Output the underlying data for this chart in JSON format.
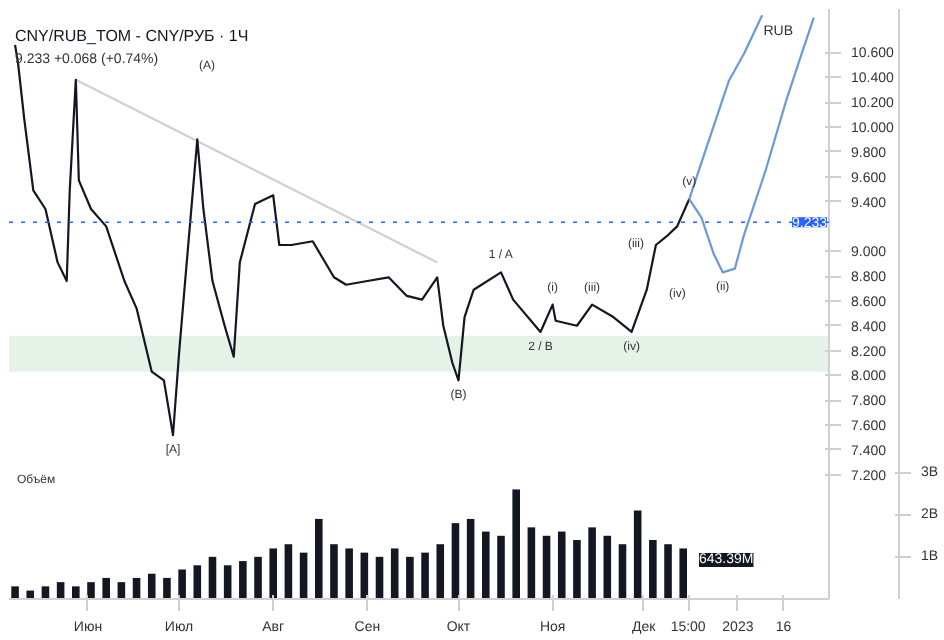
{
  "chart_data": {
    "type": "line",
    "title": "CNY/RUB_TOM - CNY/РУБ · 1Ч",
    "subtitle": "9.233 +0.068 (+0.74%)",
    "ylabel": "RUB",
    "grid": false,
    "marker": "none",
    "xlim": [
      "2022-05-06",
      "2023-01-31"
    ],
    "ylim": [
      6.2,
      10.95
    ],
    "y2lim": [
      0,
      14
    ],
    "xticks": [
      {
        "value": "2022-06-01",
        "label": "Июн"
      },
      {
        "value": "2022-07-01",
        "label": "Июл"
      },
      {
        "value": "2022-08-01",
        "label": "Авг"
      },
      {
        "value": "2022-09-01",
        "label": "Сен"
      },
      {
        "value": "2022-10-01",
        "label": "Окт"
      },
      {
        "value": "2022-11-01",
        "label": "Ноя"
      },
      {
        "value": "2022-12-01",
        "label": "Дек"
      },
      {
        "value": "2022-12-15T15:00",
        "label": "15:00"
      },
      {
        "value": "2023-01-01",
        "label": "2023"
      },
      {
        "value": "2023-01-16",
        "label": "16"
      }
    ],
    "yticks": [
      {
        "value": 7.2,
        "label": "7.200"
      },
      {
        "value": 7.4,
        "label": "7.400"
      },
      {
        "value": 7.6,
        "label": "7.600"
      },
      {
        "value": 7.8,
        "label": "7.800"
      },
      {
        "value": 8.0,
        "label": "8.000"
      },
      {
        "value": 8.2,
        "label": "8.200"
      },
      {
        "value": 8.4,
        "label": "8.400"
      },
      {
        "value": 8.6,
        "label": "8.600"
      },
      {
        "value": 8.8,
        "label": "8.800"
      },
      {
        "value": 9.0,
        "label": "9.000"
      },
      {
        "value": 9.4,
        "label": "9.400"
      },
      {
        "value": 9.6,
        "label": "9.600"
      },
      {
        "value": 9.8,
        "label": "9.800"
      },
      {
        "value": 10.0,
        "label": "10.000"
      },
      {
        "value": 10.2,
        "label": "10.200"
      },
      {
        "value": 10.4,
        "label": "10.400"
      },
      {
        "value": 10.6,
        "label": "10.600"
      }
    ],
    "y2ticks": [
      {
        "value": 1,
        "label": "1B"
      },
      {
        "value": 2,
        "label": "2B"
      },
      {
        "value": 3,
        "label": "3B"
      }
    ],
    "ref_lines": [
      {
        "axis": "y",
        "value": 9.233,
        "label": "9.233",
        "color": "#2962ff",
        "line_style": "dotted"
      }
    ],
    "bands": [
      {
        "axis": "y",
        "from": 8.03,
        "to": 8.32,
        "color": "#e6f2e8"
      }
    ],
    "series": [
      {
        "color": "#d0d0d0",
        "x": [
          "2022-05-28",
          "2022-09-24"
        ],
        "values": [
          10.38,
          8.91
        ]
      },
      {
        "color": "#131722",
        "x": [
          "2022-05-08",
          "2022-05-09",
          "2022-05-11",
          "2022-05-14",
          "2022-05-18",
          "2022-05-22",
          "2022-05-25",
          "2022-05-26",
          "2022-05-28",
          "2022-05-29",
          "2022-06-02",
          "2022-06-07",
          "2022-06-13",
          "2022-06-17",
          "2022-06-22",
          "2022-06-26",
          "2022-06-29",
          "2022-07-01",
          "2022-07-03",
          "2022-07-07",
          "2022-07-09",
          "2022-07-12",
          "2022-07-16",
          "2022-07-19",
          "2022-07-21",
          "2022-07-26",
          "2022-08-01",
          "2022-08-03",
          "2022-08-07",
          "2022-08-14",
          "2022-08-21",
          "2022-08-25",
          "2022-09-01",
          "2022-09-08",
          "2022-09-14",
          "2022-09-19",
          "2022-09-24",
          "2022-09-26",
          "2022-09-29",
          "2022-10-01",
          "2022-10-03",
          "2022-10-06",
          "2022-10-15",
          "2022-10-19",
          "2022-10-28",
          "2022-11-01",
          "2022-11-02",
          "2022-11-09",
          "2022-11-14",
          "2022-11-21",
          "2022-11-27",
          "2022-12-02",
          "2022-12-05",
          "2022-12-09",
          "2022-12-12",
          "2022-12-16"
        ],
        "values": [
          10.66,
          10.51,
          10.07,
          9.49,
          9.34,
          8.91,
          8.76,
          9.49,
          10.38,
          9.57,
          9.34,
          9.2,
          8.76,
          8.54,
          8.03,
          7.96,
          7.52,
          8.18,
          8.76,
          9.9,
          9.34,
          8.76,
          8.4,
          8.15,
          8.91,
          9.38,
          9.45,
          9.05,
          9.05,
          9.08,
          8.79,
          8.73,
          8.76,
          8.79,
          8.64,
          8.61,
          8.79,
          8.4,
          8.1,
          7.96,
          8.47,
          8.69,
          8.83,
          8.61,
          8.35,
          8.57,
          8.44,
          8.4,
          8.57,
          8.47,
          8.35,
          8.69,
          9.05,
          9.13,
          9.2,
          9.42
        ]
      },
      {
        "color": "#6a9ad8",
        "x": [
          "2022-12-16",
          "2022-12-22",
          "2022-12-29",
          "2023-01-03",
          "2023-01-09"
        ],
        "values": [
          9.42,
          9.86,
          10.37,
          10.59,
          10.9
        ]
      },
      {
        "color": "#6a9ad8",
        "x": [
          "2022-12-16",
          "2022-12-20",
          "2022-12-24",
          "2022-12-27",
          "2022-12-31",
          "2023-01-03",
          "2023-01-10",
          "2023-01-17",
          "2023-01-22",
          "2023-01-26"
        ],
        "values": [
          9.42,
          9.27,
          8.98,
          8.83,
          8.86,
          9.13,
          9.64,
          10.22,
          10.59,
          10.88
        ]
      },
      {
        "type": "bar",
        "axis": "y2",
        "color": "#131722",
        "x": [
          "2022-05-08",
          "2022-05-13",
          "2022-05-18",
          "2022-05-23",
          "2022-05-28",
          "2022-06-02",
          "2022-06-07",
          "2022-06-12",
          "2022-06-17",
          "2022-06-22",
          "2022-06-27",
          "2022-07-02",
          "2022-07-07",
          "2022-07-12",
          "2022-07-17",
          "2022-07-22",
          "2022-07-27",
          "2022-08-01",
          "2022-08-06",
          "2022-08-11",
          "2022-08-16",
          "2022-08-21",
          "2022-08-26",
          "2022-08-31",
          "2022-09-05",
          "2022-09-10",
          "2022-09-15",
          "2022-09-20",
          "2022-09-25",
          "2022-09-30",
          "2022-10-05",
          "2022-10-10",
          "2022-10-15",
          "2022-10-20",
          "2022-10-25",
          "2022-10-30",
          "2022-11-04",
          "2022-11-09",
          "2022-11-14",
          "2022-11-19",
          "2022-11-24",
          "2022-11-29",
          "2022-12-04",
          "2022-12-09",
          "2022-12-14"
        ],
        "values": [
          0.3,
          0.2,
          0.3,
          0.4,
          0.3,
          0.4,
          0.5,
          0.4,
          0.5,
          0.6,
          0.5,
          0.7,
          0.8,
          1.0,
          0.8,
          0.9,
          1.0,
          1.2,
          1.3,
          1.1,
          1.9,
          1.3,
          1.2,
          1.1,
          1.0,
          1.2,
          1.0,
          1.1,
          1.3,
          1.8,
          1.9,
          1.6,
          1.5,
          2.6,
          1.7,
          1.5,
          1.6,
          1.4,
          1.7,
          1.5,
          1.3,
          2.1,
          1.4,
          1.3,
          1.2
        ]
      }
    ],
    "annotations": [
      {
        "text": "[A]",
        "x": "2022-06-29",
        "y": 7.52
      },
      "(A)",
      {
        "text": "(B)",
        "x": "2022-10-01",
        "y": 7.96
      },
      {
        "text": "1 / A",
        "x": "2022-10-15",
        "y": 8.83
      },
      {
        "text": "2 / B",
        "x": "2022-10-28",
        "y": 8.35
      },
      {
        "text": "(i)",
        "x": "2022-11-01",
        "y": 8.57
      },
      {
        "text": "(iii)",
        "x": "2022-11-14",
        "y": 8.57
      },
      {
        "text": "(iv)",
        "x": "2022-11-27",
        "y": 8.35
      },
      {
        "text": "(iii)",
        "x": "2022-12-05",
        "y": 9.05
      },
      "(iv)",
      {
        "text": "(v)",
        "x": "2022-12-16",
        "y": 9.42
      },
      {
        "text": "(ii)",
        "x": "2022-12-27",
        "y": 8.83
      },
      "Объём",
      "643.39M"
    ]
  }
}
